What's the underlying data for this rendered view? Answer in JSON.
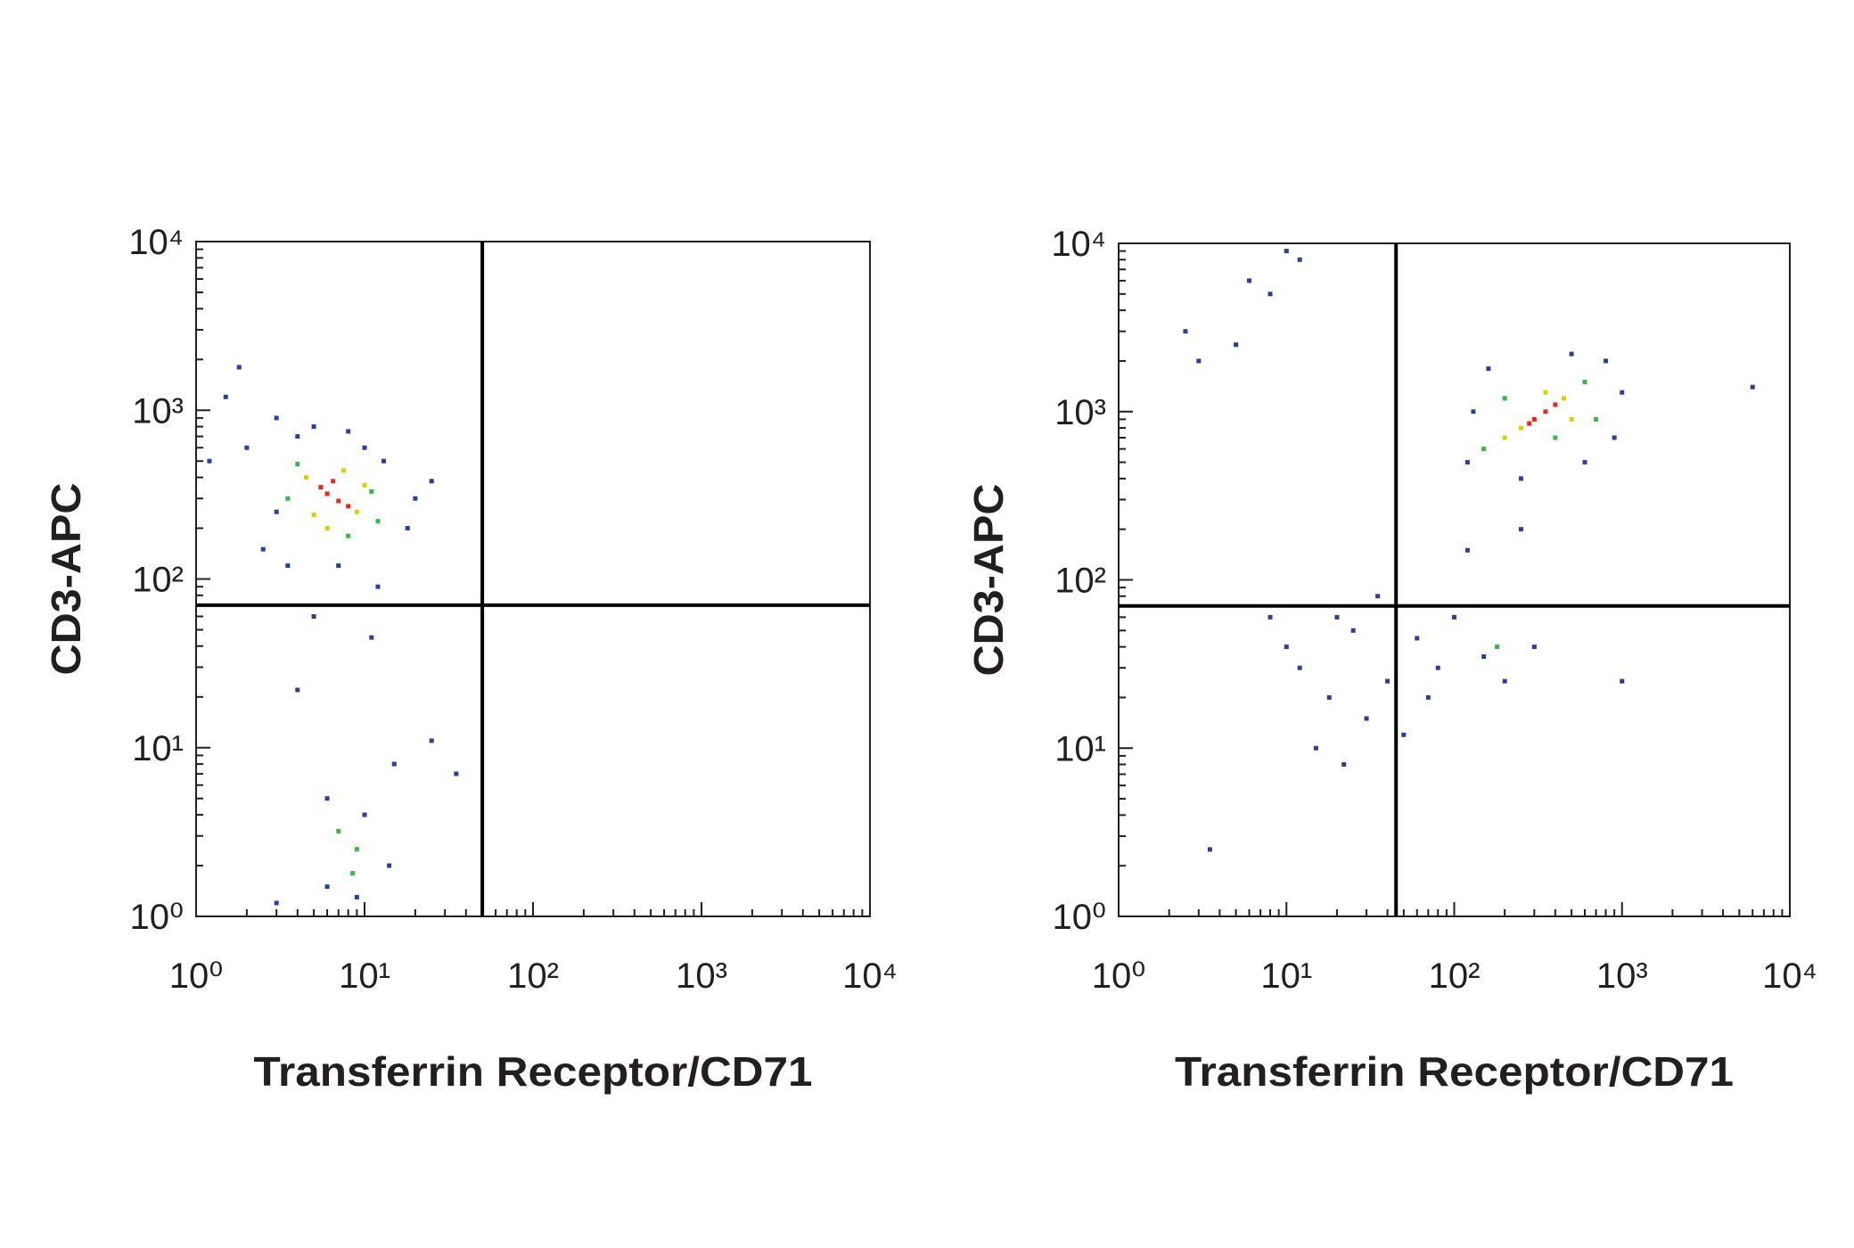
{
  "chart_data": [
    {
      "type": "scatter",
      "xlabel": "Transferrin Receptor/CD71",
      "ylabel": "CD3-APC",
      "xscale": "log",
      "yscale": "log",
      "xlim": [
        1,
        10000
      ],
      "ylim": [
        1,
        10000
      ],
      "xticks": [
        {
          "value": 1,
          "label": "10⁰"
        },
        {
          "value": 10,
          "label": "10¹"
        },
        {
          "value": 100,
          "label": "10²"
        },
        {
          "value": 1000,
          "label": "10³"
        },
        {
          "value": 10000,
          "label": "10⁴"
        }
      ],
      "yticks": [
        {
          "value": 1,
          "label": "10⁰"
        },
        {
          "value": 10,
          "label": "10¹"
        },
        {
          "value": 100,
          "label": "10²"
        },
        {
          "value": 1000,
          "label": "10³"
        },
        {
          "value": 10000,
          "label": "10⁴"
        }
      ],
      "minorticks": [
        2,
        3,
        4,
        5,
        6,
        7,
        8,
        9,
        20,
        30,
        40,
        50,
        60,
        70,
        80,
        90,
        200,
        300,
        400,
        500,
        600,
        700,
        800,
        900,
        2000,
        3000,
        4000,
        5000,
        6000,
        7000,
        8000,
        9000
      ],
      "gate_x": 50,
      "gate_y": 70,
      "series": [
        {
          "color": "#2a3f9a",
          "x": [
            2,
            3,
            2.5,
            4,
            3,
            5,
            8,
            10,
            13,
            18,
            25,
            1.5,
            1.2,
            1.8,
            3.5,
            7,
            12,
            20,
            5,
            11,
            4,
            6,
            10,
            15,
            25,
            35,
            14,
            6,
            9,
            3
          ],
          "y": [
            600,
            250,
            150,
            700,
            900,
            800,
            750,
            600,
            500,
            200,
            380,
            1200,
            500,
            1800,
            120,
            120,
            90,
            300,
            60,
            45,
            22,
            5,
            4,
            8,
            11,
            7,
            2,
            1.5,
            1.3,
            1.2
          ]
        },
        {
          "color": "#3cb44a",
          "x": [
            3.5,
            11,
            4,
            12,
            8,
            9,
            7,
            8.5
          ],
          "y": [
            300,
            330,
            480,
            220,
            180,
            2.5,
            3.2,
            1.8
          ]
        },
        {
          "color": "#d8d000",
          "x": [
            4.5,
            9,
            5,
            10,
            7.5,
            6
          ],
          "y": [
            400,
            250,
            240,
            360,
            440,
            200
          ]
        },
        {
          "color": "#e8281e",
          "x": [
            6,
            7,
            5.5,
            8,
            6.5
          ],
          "y": [
            320,
            290,
            350,
            270,
            380
          ]
        }
      ]
    },
    {
      "type": "scatter",
      "xlabel": "Transferrin Receptor/CD71",
      "ylabel": "CD3-APC",
      "xscale": "log",
      "yscale": "log",
      "xlim": [
        1,
        10000
      ],
      "ylim": [
        1,
        10000
      ],
      "xticks": [
        {
          "value": 1,
          "label": "10⁰"
        },
        {
          "value": 10,
          "label": "10¹"
        },
        {
          "value": 100,
          "label": "10²"
        },
        {
          "value": 1000,
          "label": "10³"
        },
        {
          "value": 10000,
          "label": "10⁴"
        }
      ],
      "yticks": [
        {
          "value": 1,
          "label": "10⁰"
        },
        {
          "value": 10,
          "label": "10¹"
        },
        {
          "value": 100,
          "label": "10²"
        },
        {
          "value": 1000,
          "label": "10³"
        },
        {
          "value": 10000,
          "label": "10⁴"
        }
      ],
      "minorticks": [
        2,
        3,
        4,
        5,
        6,
        7,
        8,
        9,
        20,
        30,
        40,
        50,
        60,
        70,
        80,
        90,
        200,
        300,
        400,
        500,
        600,
        700,
        800,
        900,
        2000,
        3000,
        4000,
        5000,
        6000,
        7000,
        8000,
        9000
      ],
      "gate_x": 45,
      "gate_y": 70,
      "series": [
        {
          "color": "#2a3f9a",
          "x": [
            120,
            800,
            1000,
            500,
            160,
            250,
            600,
            900,
            130,
            12,
            18,
            25,
            30,
            40,
            20,
            15,
            10,
            35,
            50,
            22,
            8,
            60,
            80,
            100,
            150,
            200,
            70,
            300,
            120,
            250,
            6,
            8,
            10,
            12,
            5,
            3,
            2.5,
            1000,
            6000,
            3.5
          ],
          "y": [
            500,
            2000,
            1300,
            2200,
            1800,
            400,
            500,
            700,
            1000,
            30,
            20,
            50,
            15,
            25,
            60,
            10,
            40,
            80,
            12,
            8,
            60,
            45,
            30,
            60,
            35,
            25,
            20,
            40,
            150,
            200,
            6000,
            5000,
            9000,
            8000,
            2500,
            2000,
            3000,
            25,
            1400,
            2.5
          ]
        },
        {
          "color": "#3cb44a",
          "x": [
            150,
            600,
            200,
            700,
            400,
            180
          ],
          "y": [
            600,
            1500,
            1200,
            900,
            700,
            40
          ]
        },
        {
          "color": "#d8d000",
          "x": [
            250,
            450,
            500,
            200,
            350
          ],
          "y": [
            800,
            1200,
            900,
            700,
            1300
          ]
        },
        {
          "color": "#e8281e",
          "x": [
            300,
            350,
            400,
            280
          ],
          "y": [
            900,
            1000,
            1100,
            850
          ]
        }
      ]
    }
  ]
}
